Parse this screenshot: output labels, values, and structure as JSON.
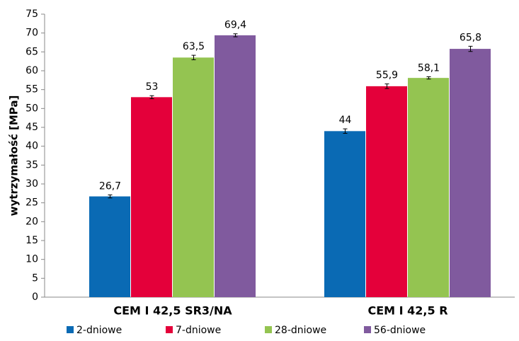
{
  "chart_data": {
    "type": "bar",
    "y_label": "wytrzymałość [MPa]",
    "categories": [
      "CEM I 42,5 SR3/NA",
      "CEM I 42,5 R"
    ],
    "series": [
      {
        "name": "2-dniowe",
        "color": "#0a6ab4",
        "values": [
          26.7,
          44
        ],
        "value_labels": [
          "26,7",
          "44"
        ],
        "errors": [
          0.4,
          0.6
        ]
      },
      {
        "name": "7-dniowe",
        "color": "#e4003a",
        "values": [
          53,
          55.9
        ],
        "value_labels": [
          "53",
          "55,9"
        ],
        "errors": [
          0.4,
          0.6
        ]
      },
      {
        "name": "28-dniowe",
        "color": "#94c451",
        "values": [
          63.5,
          58.1
        ],
        "value_labels": [
          "63,5",
          "58,1"
        ],
        "errors": [
          0.6,
          0.3
        ]
      },
      {
        "name": "56-dniowe",
        "color": "#805a9e",
        "values": [
          69.4,
          65.8
        ],
        "value_labels": [
          "69,4",
          "65,8"
        ],
        "errors": [
          0.4,
          0.7
        ]
      }
    ],
    "ylim": [
      0,
      75
    ],
    "yticks": [
      0,
      5,
      10,
      15,
      20,
      25,
      30,
      35,
      40,
      45,
      50,
      55,
      60,
      65,
      70,
      75
    ],
    "grid": false,
    "legend": "bottom"
  }
}
